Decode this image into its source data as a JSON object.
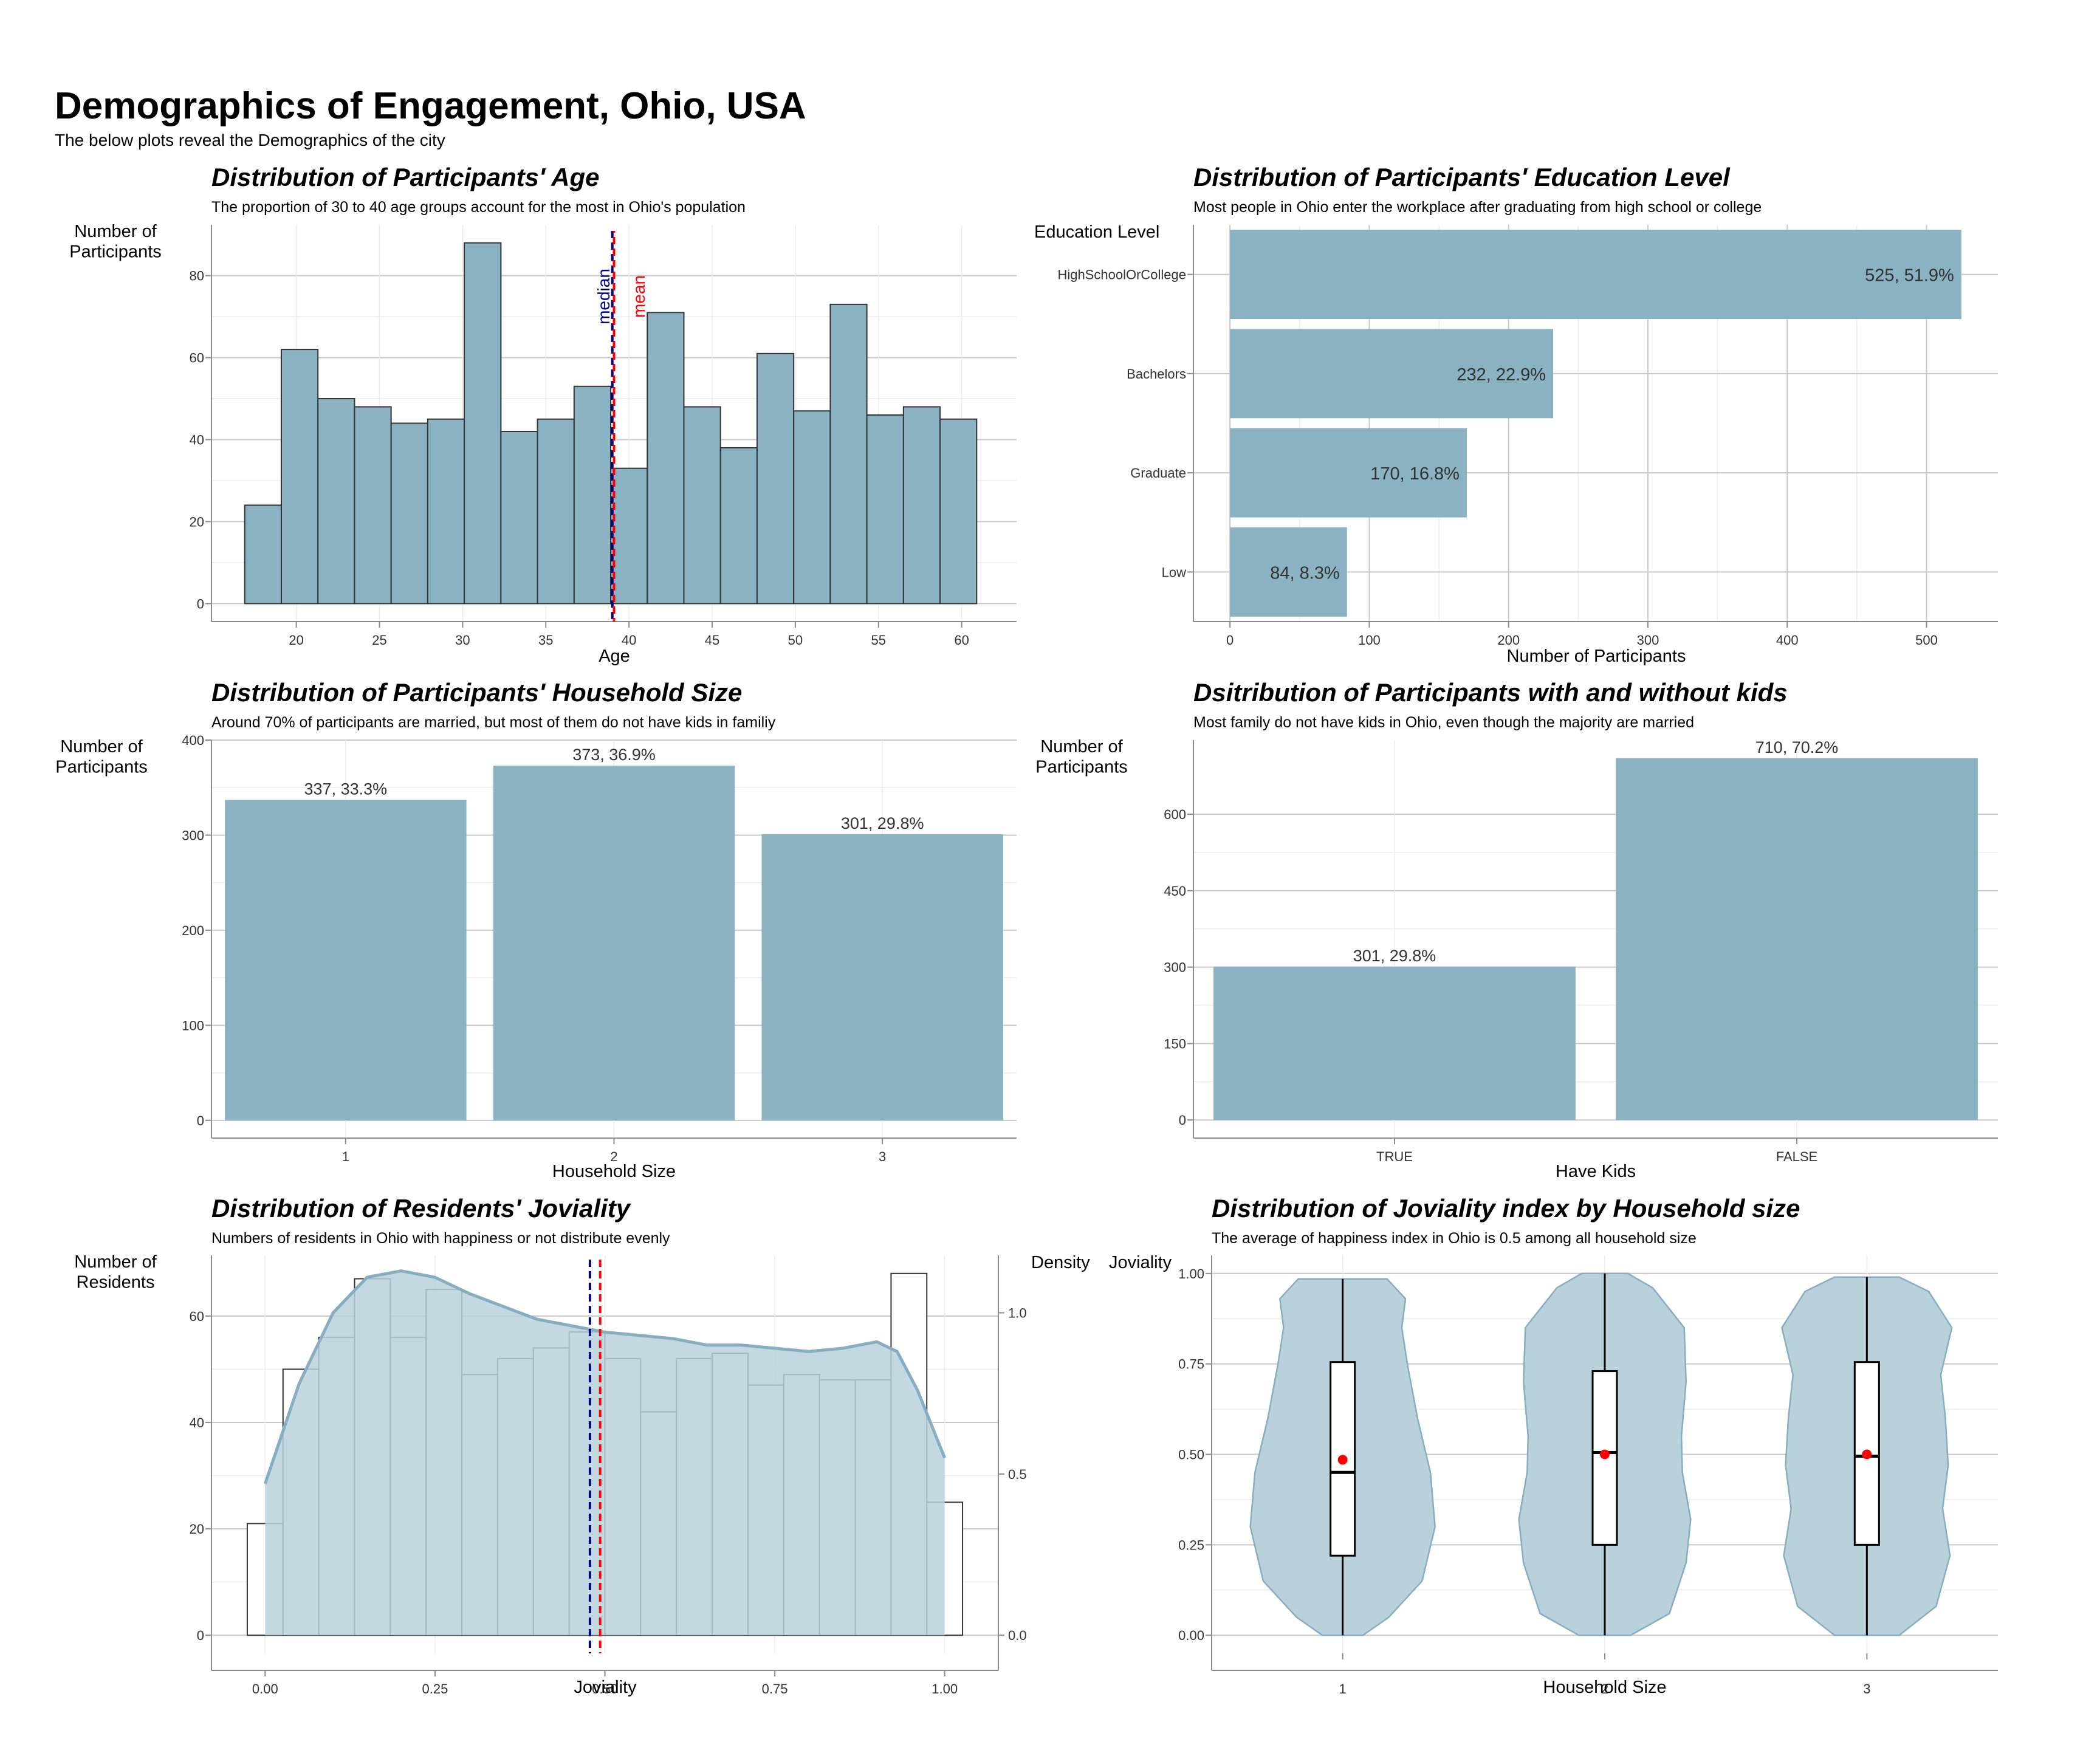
{
  "page": {
    "title": "Demographics of Engagement, Ohio, USA",
    "subtitle": "The below plots reveal the Demographics of the city"
  },
  "colors": {
    "bar_fill": "#8AB2C2",
    "violin_fill": "#B8D1DA",
    "density_line": "#86AEC0",
    "median_line": "#00008B",
    "mean_line": "#FF0000",
    "grid_major": "#C8C8C8",
    "grid_minor": "#EBEBEB",
    "axis_line": "#8C8C8C",
    "text_main": "#000000",
    "tick_text": "#333333"
  },
  "chart_data": [
    {
      "type": "bar",
      "title": "Distribution of Participants' Age",
      "subtitle": "The proportion of 30 to 40 age groups account for the most in Ohio's population",
      "ylabel": "Number of\nParticipants",
      "xlabel": "Age",
      "bin_width": 2.2,
      "bins": [
        {
          "x": 18.0,
          "count": 24
        },
        {
          "x": 20.2,
          "count": 62
        },
        {
          "x": 22.4,
          "count": 50
        },
        {
          "x": 24.6,
          "count": 48
        },
        {
          "x": 26.8,
          "count": 44
        },
        {
          "x": 29.0,
          "count": 45
        },
        {
          "x": 31.2,
          "count": 88
        },
        {
          "x": 33.4,
          "count": 42
        },
        {
          "x": 35.6,
          "count": 45
        },
        {
          "x": 37.8,
          "count": 53
        },
        {
          "x": 40.0,
          "count": 33
        },
        {
          "x": 42.2,
          "count": 71
        },
        {
          "x": 44.4,
          "count": 48
        },
        {
          "x": 46.6,
          "count": 38
        },
        {
          "x": 48.8,
          "count": 61
        },
        {
          "x": 51.0,
          "count": 47
        },
        {
          "x": 53.2,
          "count": 73
        },
        {
          "x": 55.4,
          "count": 46
        },
        {
          "x": 57.6,
          "count": 48
        },
        {
          "x": 59.8,
          "count": 45
        }
      ],
      "x_ticks": [
        20,
        25,
        30,
        35,
        40,
        45,
        50,
        55,
        60
      ],
      "y_ticks": [
        0,
        20,
        40,
        60,
        80
      ],
      "xlim": [
        14.9,
        63.3
      ],
      "ylim": [
        -4.4,
        92.4
      ],
      "median": 39.0,
      "mean": 39.1,
      "median_label": "median",
      "mean_label": "mean"
    },
    {
      "type": "bar",
      "orientation": "horizontal",
      "title": "Distribution of Participants' Education Level",
      "subtitle": "Most people in Ohio enter the workplace after graduating from high school or college",
      "ylabel": "Education Level",
      "xlabel": "Number of Participants",
      "categories": [
        "HighSchoolOrCollege",
        "Bachelors",
        "Graduate",
        "Low"
      ],
      "values": [
        525,
        232,
        170,
        84
      ],
      "labels": [
        "525, 51.9%",
        "232, 22.9%",
        "170, 16.8%",
        "84, 8.3%"
      ],
      "x_ticks": [
        0,
        100,
        200,
        300,
        400,
        500
      ],
      "xlim": [
        -26.25,
        551.25
      ]
    },
    {
      "type": "bar",
      "title": "Distribution of Participants' Household Size",
      "subtitle": "Around 70% of participants are married, but most of them do not have kids in familiy",
      "ylabel": "Number of\nParticipants",
      "xlabel": "Household Size",
      "categories": [
        "1",
        "2",
        "3"
      ],
      "values": [
        337,
        373,
        301
      ],
      "labels": [
        "337, 33.3%",
        "373, 36.9%",
        "301, 29.8%"
      ],
      "y_ticks": [
        0,
        100,
        200,
        300,
        400
      ],
      "ylim": [
        -18.65,
        400
      ]
    },
    {
      "type": "bar",
      "title": "Dsitribution of Participants with and without kids",
      "subtitle": "Most family do not have kids in Ohio, even though the majority are married",
      "ylabel": "Number of\nParticipants",
      "xlabel": "Have Kids",
      "categories": [
        "TRUE",
        "FALSE"
      ],
      "values": [
        301,
        710
      ],
      "labels": [
        "301, 29.8%",
        "710, 70.2%"
      ],
      "y_ticks": [
        0,
        150,
        300,
        450,
        600
      ],
      "ylim": [
        -35.5,
        745.5
      ]
    },
    {
      "type": "bar",
      "title": "Distribution of Residents' Joviality",
      "subtitle": "Numbers of residents in Ohio with happiness or not distribute evenly",
      "ylabel": "Number of\nResidents",
      "y2label": "Density",
      "xlabel": "Joviality",
      "bin_width": 0.0526,
      "bins": [
        {
          "x": 0.0,
          "count": 21
        },
        {
          "x": 0.0526,
          "count": 50
        },
        {
          "x": 0.1053,
          "count": 56
        },
        {
          "x": 0.1579,
          "count": 67
        },
        {
          "x": 0.2105,
          "count": 56
        },
        {
          "x": 0.2632,
          "count": 65
        },
        {
          "x": 0.3158,
          "count": 49
        },
        {
          "x": 0.3684,
          "count": 52
        },
        {
          "x": 0.4211,
          "count": 54
        },
        {
          "x": 0.4737,
          "count": 57
        },
        {
          "x": 0.5263,
          "count": 52
        },
        {
          "x": 0.5789,
          "count": 42
        },
        {
          "x": 0.6316,
          "count": 52
        },
        {
          "x": 0.6842,
          "count": 53
        },
        {
          "x": 0.7368,
          "count": 47
        },
        {
          "x": 0.7895,
          "count": 49
        },
        {
          "x": 0.8421,
          "count": 48
        },
        {
          "x": 0.8947,
          "count": 48
        },
        {
          "x": 0.9474,
          "count": 68
        },
        {
          "x": 1.0,
          "count": 25
        }
      ],
      "density": [
        [
          0.0,
          0.47
        ],
        [
          0.05,
          0.78
        ],
        [
          0.1,
          1.0
        ],
        [
          0.15,
          1.11
        ],
        [
          0.2,
          1.13
        ],
        [
          0.25,
          1.11
        ],
        [
          0.3,
          1.06
        ],
        [
          0.35,
          1.02
        ],
        [
          0.4,
          0.98
        ],
        [
          0.45,
          0.96
        ],
        [
          0.5,
          0.94
        ],
        [
          0.55,
          0.93
        ],
        [
          0.6,
          0.92
        ],
        [
          0.65,
          0.9
        ],
        [
          0.7,
          0.9
        ],
        [
          0.75,
          0.89
        ],
        [
          0.8,
          0.88
        ],
        [
          0.85,
          0.89
        ],
        [
          0.9,
          0.91
        ],
        [
          0.93,
          0.88
        ],
        [
          0.96,
          0.76
        ],
        [
          1.0,
          0.55
        ]
      ],
      "x_ticks": [
        0.0,
        0.25,
        0.5,
        0.75,
        1.0
      ],
      "x_tick_labels": [
        "0.00",
        "0.25",
        "0.50",
        "0.75",
        "1.00"
      ],
      "y_ticks": [
        0,
        20,
        40,
        60
      ],
      "y2_ticks": [
        0.0,
        0.5,
        1.0
      ],
      "y2_tick_labels": [
        "0.0",
        "0.5",
        "1.0"
      ],
      "xlim": [
        -0.079,
        1.079
      ],
      "ylim": [
        -3.4,
        71.4
      ],
      "y2_per_y": 0.0165,
      "median": 0.478,
      "mean": 0.493
    },
    {
      "type": "violin",
      "title": "Distribution of Joviality index by Household size",
      "subtitle": "The average of happiness index in Ohio is 0.5 among all household size",
      "ylabel": "Joviality",
      "xlabel": "Household Size",
      "categories": [
        "1",
        "2",
        "3"
      ],
      "y_ticks": [
        0.0,
        0.25,
        0.5,
        0.75,
        1.0
      ],
      "y_tick_labels": [
        "0.00",
        "0.25",
        "0.50",
        "0.75",
        "1.00"
      ],
      "ylim": [
        -0.05,
        1.05
      ],
      "groups": [
        {
          "category": "1",
          "q1": 0.22,
          "median": 0.45,
          "q3": 0.755,
          "mean": 0.485,
          "min": 0.0,
          "max": 0.985,
          "profile": [
            [
              0.0,
              0.22
            ],
            [
              0.05,
              0.5
            ],
            [
              0.15,
              0.86
            ],
            [
              0.3,
              1.0
            ],
            [
              0.45,
              0.95
            ],
            [
              0.6,
              0.81
            ],
            [
              0.75,
              0.7
            ],
            [
              0.85,
              0.64
            ],
            [
              0.93,
              0.68
            ],
            [
              0.985,
              0.48
            ]
          ]
        },
        {
          "category": "2",
          "q1": 0.25,
          "median": 0.505,
          "q3": 0.73,
          "mean": 0.5,
          "min": 0.0,
          "max": 1.0,
          "profile": [
            [
              0.0,
              0.28
            ],
            [
              0.06,
              0.7
            ],
            [
              0.2,
              0.88
            ],
            [
              0.32,
              0.93
            ],
            [
              0.45,
              0.84
            ],
            [
              0.55,
              0.83
            ],
            [
              0.7,
              0.88
            ],
            [
              0.85,
              0.86
            ],
            [
              0.96,
              0.52
            ],
            [
              1.0,
              0.25
            ]
          ]
        },
        {
          "category": "3",
          "q1": 0.25,
          "median": 0.495,
          "q3": 0.755,
          "mean": 0.5,
          "min": 0.0,
          "max": 0.99,
          "profile": [
            [
              0.0,
              0.35
            ],
            [
              0.08,
              0.75
            ],
            [
              0.22,
              0.9
            ],
            [
              0.35,
              0.82
            ],
            [
              0.47,
              0.88
            ],
            [
              0.6,
              0.85
            ],
            [
              0.72,
              0.8
            ],
            [
              0.85,
              0.92
            ],
            [
              0.95,
              0.67
            ],
            [
              0.99,
              0.35
            ]
          ]
        }
      ]
    }
  ]
}
